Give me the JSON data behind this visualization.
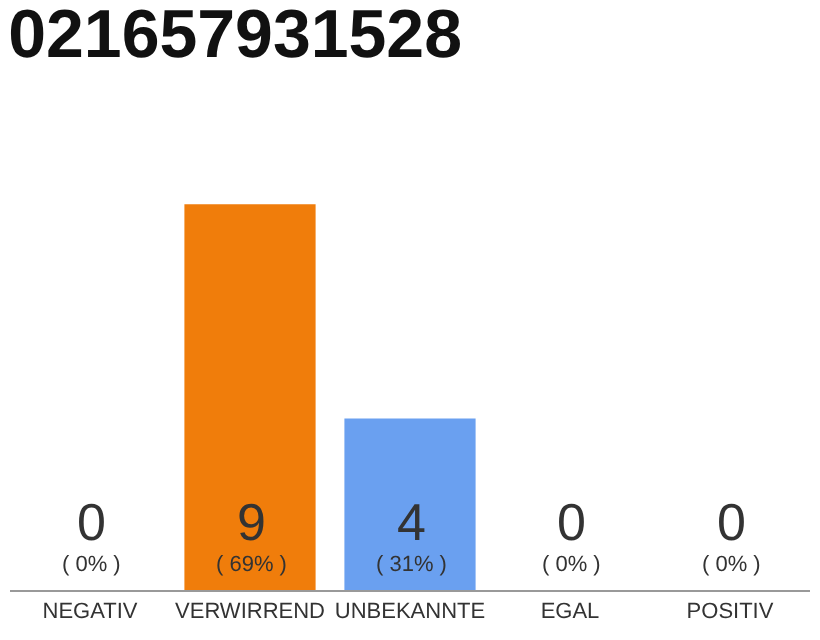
{
  "chart_data": {
    "type": "bar",
    "title": "021657931528",
    "categories": [
      "NEGATIV",
      "VERWIRREND",
      "UNBEKANNTE",
      "EGAL",
      "POSITIV"
    ],
    "values": [
      0,
      9,
      4,
      0,
      0
    ],
    "colors": [
      "#e5e5e5",
      "#f07d0b",
      "#6aa0f0",
      "#e5e5e5",
      "#e5e5e5"
    ],
    "value_labels": [
      "0\n( 0% )",
      "9\n( 69% )",
      "4\n( 31% )",
      "0\n( 0% )",
      "0\n( 0% )"
    ],
    "legend": false
  }
}
